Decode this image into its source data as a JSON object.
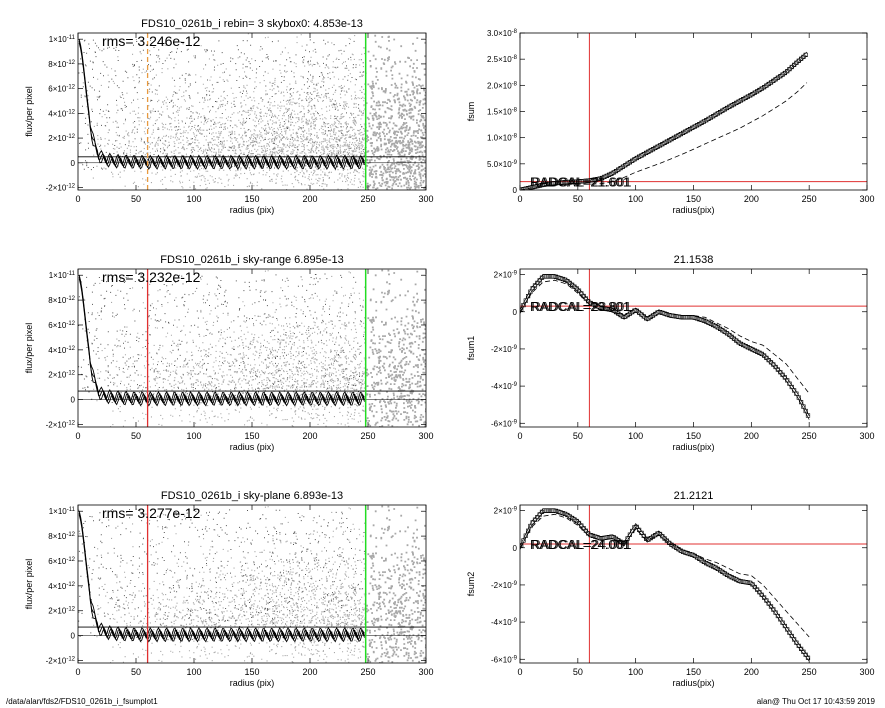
{
  "footer": {
    "path": "/data/alan/fds2/FDS10_0261b_i_fsumplot1",
    "stamp": "alan@  Thu Oct 17 10:43:59 2019"
  },
  "colors": {
    "red": "#e03030",
    "green": "#22dd22",
    "orange": "#e89a40",
    "scatter": "#a8a8a8"
  },
  "chart_data": [
    {
      "type": "scatter",
      "title": "FDS10_0261b_i rebin= 3    skybox0:  4.853e-13",
      "xlabel": "radius (pix)",
      "ylabel": "flux/per pixel",
      "xlim": [
        0,
        300
      ],
      "ylim": [
        -2.2e-12,
        1.05e-11
      ],
      "xticks": [
        "0",
        "50",
        "100",
        "150",
        "200",
        "250",
        "300"
      ],
      "yticks": [
        {
          "v": 1e-11,
          "m": "1×10",
          "e": "-11"
        },
        {
          "v": 8e-12,
          "m": "8×10",
          "e": "-12"
        },
        {
          "v": 6e-12,
          "m": "6×10",
          "e": "-12"
        },
        {
          "v": 4e-12,
          "m": "4×10",
          "e": "-12"
        },
        {
          "v": 2e-12,
          "m": "2×10",
          "e": "-12"
        },
        {
          "v": 0,
          "m": "0",
          "e": ""
        },
        {
          "v": -2e-12,
          "m": "-2×10",
          "e": "-12"
        }
      ],
      "rms_text": "rms= 3.246e-12",
      "sky_level": 4.853e-13,
      "vline_inner": {
        "x": 60,
        "style": "orange-dashed"
      },
      "vline_outer": {
        "x": 248,
        "style": "green"
      },
      "profile": {
        "x": [
          1,
          3,
          5,
          7,
          9,
          11,
          13,
          15,
          18,
          21,
          25,
          30,
          40,
          50,
          60,
          80,
          100,
          150,
          200,
          248
        ],
        "y": [
          9.8e-12,
          9e-12,
          7.5e-12,
          5.8e-12,
          4.2e-12,
          2.8e-12,
          1.8e-12,
          1.1e-12,
          6e-13,
          3e-13,
          2e-13,
          1e-13,
          5e-14,
          2e-14,
          0,
          0,
          0,
          0,
          0,
          0
        ]
      }
    },
    {
      "type": "line",
      "title": "",
      "xlabel": "radius(pix)",
      "ylabel": "fsum",
      "xlim": [
        0,
        300
      ],
      "ylim": [
        0,
        3e-08
      ],
      "xticks": [
        "0",
        "50",
        "100",
        "150",
        "200",
        "250",
        "300"
      ],
      "yticks": [
        {
          "v": 0,
          "m": "0",
          "e": ""
        },
        {
          "v": 5e-09,
          "m": "5.0×10",
          "e": "-9"
        },
        {
          "v": 1e-08,
          "m": "1.0×10",
          "e": "-8"
        },
        {
          "v": 1.5e-08,
          "m": "1.5×10",
          "e": "-8"
        },
        {
          "v": 2e-08,
          "m": "2.0×10",
          "e": "-8"
        },
        {
          "v": 2.5e-08,
          "m": "2.5×10",
          "e": "-8"
        },
        {
          "v": 3e-08,
          "m": "3.0×10",
          "e": "-8"
        }
      ],
      "vline": 60,
      "hline": 1.6e-09,
      "overlay_text": "RADCAL=21.601",
      "x": [
        0,
        10,
        20,
        30,
        40,
        50,
        60,
        70,
        80,
        90,
        100,
        110,
        120,
        130,
        140,
        150,
        160,
        170,
        180,
        190,
        200,
        210,
        220,
        230,
        240,
        248
      ],
      "main": [
        0,
        5e-10,
        1e-09,
        1.3e-09,
        1.5e-09,
        1.6e-09,
        1.8e-09,
        2.2e-09,
        3.2e-09,
        4.6e-09,
        6e-09,
        7.2e-09,
        8.4e-09,
        9.6e-09,
        1.08e-08,
        1.2e-08,
        1.32e-08,
        1.45e-08,
        1.58e-08,
        1.7e-08,
        1.82e-08,
        1.95e-08,
        2.1e-08,
        2.25e-08,
        2.45e-08,
        2.6e-08
      ],
      "lower": [
        0,
        4e-10,
        8e-10,
        1e-09,
        1.1e-09,
        1.1e-09,
        1.1e-09,
        1.2e-09,
        1.6e-09,
        2.4e-09,
        3.4e-09,
        4.2e-09,
        5e-09,
        5.9e-09,
        6.8e-09,
        7.8e-09,
        8.8e-09,
        9.8e-09,
        1.08e-08,
        1.18e-08,
        1.3e-08,
        1.42e-08,
        1.56e-08,
        1.7e-08,
        1.88e-08,
        2.05e-08
      ]
    },
    {
      "type": "scatter",
      "title": "FDS10_0261b_i sky-range  6.895e-13",
      "xlabel": "radius (pix)",
      "ylabel": "flux/per pixel",
      "xlim": [
        0,
        300
      ],
      "ylim": [
        -2.2e-12,
        1.05e-11
      ],
      "xticks": [
        "0",
        "50",
        "100",
        "150",
        "200",
        "250",
        "300"
      ],
      "yticks": [
        {
          "v": 1e-11,
          "m": "1×10",
          "e": "-11"
        },
        {
          "v": 8e-12,
          "m": "8×10",
          "e": "-12"
        },
        {
          "v": 6e-12,
          "m": "6×10",
          "e": "-12"
        },
        {
          "v": 4e-12,
          "m": "4×10",
          "e": "-12"
        },
        {
          "v": 2e-12,
          "m": "2×10",
          "e": "-12"
        },
        {
          "v": 0,
          "m": "0",
          "e": ""
        },
        {
          "v": -2e-12,
          "m": "-2×10",
          "e": "-12"
        }
      ],
      "rms_text": "rms= 3.232e-12",
      "sky_level": 6.895e-13,
      "vline_inner": {
        "x": 60,
        "style": "red"
      },
      "vline_outer": {
        "x": 248,
        "style": "green"
      },
      "profile": {
        "x": [
          1,
          3,
          5,
          7,
          9,
          11,
          13,
          15,
          18,
          21,
          25,
          30,
          40,
          50,
          60,
          80,
          100,
          150,
          200,
          248
        ],
        "y": [
          9.8e-12,
          9e-12,
          7.5e-12,
          5.8e-12,
          4.2e-12,
          2.8e-12,
          1.8e-12,
          1.1e-12,
          6e-13,
          3e-13,
          2e-13,
          1e-13,
          5e-14,
          2e-14,
          0,
          0,
          0,
          0,
          0,
          0
        ]
      }
    },
    {
      "type": "line",
      "title": "21.1538",
      "xlabel": "radius(pix)",
      "ylabel": "fsum1",
      "xlim": [
        0,
        300
      ],
      "ylim": [
        -6.2e-09,
        2.3e-09
      ],
      "xticks": [
        "0",
        "50",
        "100",
        "150",
        "200",
        "250",
        "300"
      ],
      "yticks": [
        {
          "v": 2e-09,
          "m": "2×10",
          "e": "-9"
        },
        {
          "v": 0,
          "m": "0",
          "e": ""
        },
        {
          "v": -2e-09,
          "m": "-2×10",
          "e": "-9"
        },
        {
          "v": -4e-09,
          "m": "-4×10",
          "e": "-9"
        },
        {
          "v": -6e-09,
          "m": "-6×10",
          "e": "-9"
        }
      ],
      "vline": 60,
      "hline": 3e-10,
      "overlay_text": "RADCAL=23.801",
      "x": [
        0,
        10,
        20,
        30,
        40,
        50,
        60,
        70,
        80,
        90,
        100,
        110,
        120,
        130,
        140,
        150,
        160,
        170,
        180,
        190,
        200,
        210,
        220,
        230,
        240,
        250
      ],
      "main": [
        0,
        1.2e-09,
        1.9e-09,
        1.9e-09,
        1.7e-09,
        1.2e-09,
        5e-10,
        2e-10,
        1e-10,
        -3e-10,
        1e-10,
        -4e-10,
        0,
        -2e-10,
        -3e-10,
        -3e-10,
        -5e-10,
        -8e-10,
        -1.2e-09,
        -1.7e-09,
        -2e-09,
        -2.3e-09,
        -2.9e-09,
        -3.6e-09,
        -4.5e-09,
        -5.7e-09
      ],
      "lower": [
        0,
        1e-09,
        1.6e-09,
        1.7e-09,
        1.5e-09,
        1e-09,
        4e-10,
        1e-10,
        0,
        -2e-10,
        2e-10,
        -3e-10,
        1e-10,
        -1e-10,
        -2e-10,
        -2e-10,
        -3e-10,
        -6e-10,
        -9e-10,
        -1.3e-09,
        -1.6e-09,
        -1.8e-09,
        -2.3e-09,
        -2.8e-09,
        -3.6e-09,
        -4.4e-09
      ]
    },
    {
      "type": "scatter",
      "title": "FDS10_0261b_i sky-plane  6.893e-13",
      "xlabel": "radius (pix)",
      "ylabel": "flux/per pixel",
      "xlim": [
        0,
        300
      ],
      "ylim": [
        -2.2e-12,
        1.05e-11
      ],
      "xticks": [
        "0",
        "50",
        "100",
        "150",
        "200",
        "250",
        "300"
      ],
      "yticks": [
        {
          "v": 1e-11,
          "m": "1×10",
          "e": "-11"
        },
        {
          "v": 8e-12,
          "m": "8×10",
          "e": "-12"
        },
        {
          "v": 6e-12,
          "m": "6×10",
          "e": "-12"
        },
        {
          "v": 4e-12,
          "m": "4×10",
          "e": "-12"
        },
        {
          "v": 2e-12,
          "m": "2×10",
          "e": "-12"
        },
        {
          "v": 0,
          "m": "0",
          "e": ""
        },
        {
          "v": -2e-12,
          "m": "-2×10",
          "e": "-12"
        }
      ],
      "rms_text": "rms= 3.277e-12",
      "sky_level": 6.893e-13,
      "vline_inner": {
        "x": 60,
        "style": "red"
      },
      "vline_outer": {
        "x": 248,
        "style": "green"
      },
      "profile": {
        "x": [
          1,
          3,
          5,
          7,
          9,
          11,
          13,
          15,
          18,
          21,
          25,
          30,
          40,
          50,
          60,
          80,
          100,
          150,
          200,
          248
        ],
        "y": [
          9.8e-12,
          9e-12,
          7.5e-12,
          5.8e-12,
          4.2e-12,
          2.8e-12,
          1.8e-12,
          1.1e-12,
          6e-13,
          3e-13,
          2e-13,
          1e-13,
          5e-14,
          2e-14,
          0,
          0,
          0,
          0,
          0,
          0
        ]
      }
    },
    {
      "type": "line",
      "title": "21.2121",
      "xlabel": "radius(pix)",
      "ylabel": "fsum2",
      "xlim": [
        0,
        300
      ],
      "ylim": [
        -6.2e-09,
        2.3e-09
      ],
      "xticks": [
        "0",
        "50",
        "100",
        "150",
        "200",
        "250",
        "300"
      ],
      "yticks": [
        {
          "v": 2e-09,
          "m": "2×10",
          "e": "-9"
        },
        {
          "v": 0,
          "m": "0",
          "e": ""
        },
        {
          "v": -2e-09,
          "m": "-2×10",
          "e": "-9"
        },
        {
          "v": -4e-09,
          "m": "-4×10",
          "e": "-9"
        },
        {
          "v": -6e-09,
          "m": "-6×10",
          "e": "-9"
        }
      ],
      "vline": 60,
      "hline": 2e-10,
      "overlay_text": "RADCAL=24.001",
      "x": [
        0,
        10,
        20,
        30,
        40,
        50,
        60,
        70,
        80,
        90,
        100,
        110,
        120,
        130,
        140,
        150,
        160,
        170,
        180,
        190,
        200,
        210,
        220,
        230,
        240,
        250
      ],
      "main": [
        0,
        1.3e-09,
        2e-09,
        2e-09,
        1.8e-09,
        1.4e-09,
        7e-10,
        5e-10,
        6e-10,
        2e-10,
        1.2e-09,
        4e-10,
        8e-10,
        2e-10,
        -2e-10,
        -4e-10,
        -8e-10,
        -1.1e-09,
        -1.5e-09,
        -1.8e-09,
        -1.9e-09,
        -2.6e-09,
        -3.4e-09,
        -4.3e-09,
        -5.2e-09,
        -6e-09
      ],
      "lower": [
        0,
        1.1e-09,
        1.7e-09,
        1.8e-09,
        1.6e-09,
        1.2e-09,
        6e-10,
        4e-10,
        5e-10,
        2e-10,
        1e-09,
        4e-10,
        7e-10,
        2e-10,
        -1e-10,
        -3e-10,
        -6e-10,
        -8e-10,
        -1.1e-09,
        -1.4e-09,
        -1.5e-09,
        -2e-09,
        -2.7e-09,
        -3.4e-09,
        -4.1e-09,
        -4.8e-09
      ]
    }
  ]
}
